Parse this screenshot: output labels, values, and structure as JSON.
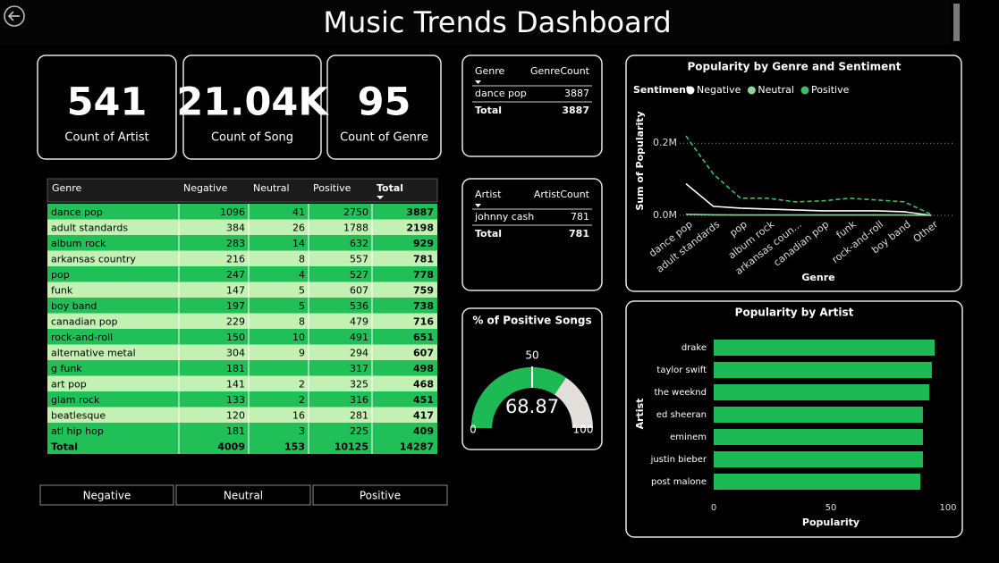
{
  "header": {
    "title": "Music Trends Dashboard"
  },
  "kpis": [
    {
      "value": "541",
      "label": "Count of Artist"
    },
    {
      "value": "21.04K",
      "label": "Count of Song"
    },
    {
      "value": "95",
      "label": "Count of Genre"
    }
  ],
  "table": {
    "columns": [
      "Genre",
      "Negative",
      "Neutral",
      "Positive",
      "Total"
    ],
    "rows": [
      [
        "dance pop",
        1096,
        41,
        2750,
        3887
      ],
      [
        "adult standards",
        384,
        26,
        1788,
        2198
      ],
      [
        "album rock",
        283,
        14,
        632,
        929
      ],
      [
        "arkansas country",
        216,
        8,
        557,
        781
      ],
      [
        "pop",
        247,
        4,
        527,
        778
      ],
      [
        "funk",
        147,
        5,
        607,
        759
      ],
      [
        "boy band",
        197,
        5,
        536,
        738
      ],
      [
        "canadian pop",
        229,
        8,
        479,
        716
      ],
      [
        "rock-and-roll",
        150,
        10,
        491,
        651
      ],
      [
        "alternative metal",
        304,
        9,
        294,
        607
      ],
      [
        "g funk",
        181,
        null,
        317,
        498
      ],
      [
        "art pop",
        141,
        2,
        325,
        468
      ],
      [
        "glam rock",
        133,
        2,
        316,
        451
      ],
      [
        "beatlesque",
        120,
        16,
        281,
        417
      ],
      [
        "atl hip hop",
        181,
        3,
        225,
        409
      ]
    ],
    "total": [
      "Total",
      4009,
      153,
      10125,
      14287
    ]
  },
  "genre_count": {
    "columns": [
      "Genre",
      "GenreCount"
    ],
    "rows": [
      [
        "dance pop",
        3887
      ]
    ],
    "total": [
      "Total",
      3887
    ]
  },
  "artist_count": {
    "columns": [
      "Artist",
      "ArtistCount"
    ],
    "rows": [
      [
        "johnny cash",
        781
      ]
    ],
    "total": [
      "Total",
      781
    ]
  },
  "slicer": [
    "Negative",
    "Neutral",
    "Positive"
  ],
  "chart_data": [
    {
      "type": "line",
      "title": "Popularity by Genre and Sentiment",
      "legend_title": "Sentiment",
      "x_label": "Genre",
      "y_label": "Sum of Popularity",
      "categories": [
        "dance pop",
        "adult standards",
        "pop",
        "album rock",
        "arkansas coun...",
        "canadian pop",
        "funk",
        "rock-and-roll",
        "boy band",
        "Other"
      ],
      "series": [
        {
          "name": "Negative",
          "color": "#ffffff",
          "values": [
            87500,
            25000,
            20000,
            17500,
            15000,
            12500,
            12500,
            12500,
            10000,
            0
          ]
        },
        {
          "name": "Neutral",
          "color": "#8fd4a0",
          "values": [
            3000,
            1500,
            1000,
            1000,
            1000,
            1000,
            1000,
            1000,
            1000,
            0
          ]
        },
        {
          "name": "Positive",
          "color": "#3fbf63",
          "style": "dashed",
          "values": [
            220000,
            115000,
            47500,
            47500,
            37500,
            40000,
            47500,
            42500,
            37500,
            2500
          ]
        }
      ],
      "ylim": [
        0,
        250000
      ],
      "yticks": [
        {
          "value": 0,
          "label": "0.0M"
        },
        {
          "value": 200000,
          "label": "0.2M"
        }
      ],
      "grid": true
    },
    {
      "type": "gauge",
      "title": "% of Positive Songs",
      "value": 68.87,
      "min": 0,
      "max": 100,
      "target": 50,
      "color": "#1db954",
      "track_color": "#e3dfdb"
    },
    {
      "type": "bar",
      "title": "Popularity by Artist",
      "x_label": "Popularity",
      "y_label": "Artist",
      "categories": [
        "drake",
        "taylor swift",
        "the weeknd",
        "ed sheeran",
        "eminem",
        "justin bieber",
        "post malone"
      ],
      "values": [
        94.3,
        93.1,
        92,
        89.3,
        89.3,
        89.3,
        88.2
      ],
      "color": "#1db954",
      "xlim": [
        0,
        100
      ],
      "xticks": [
        0,
        50,
        100
      ]
    }
  ]
}
